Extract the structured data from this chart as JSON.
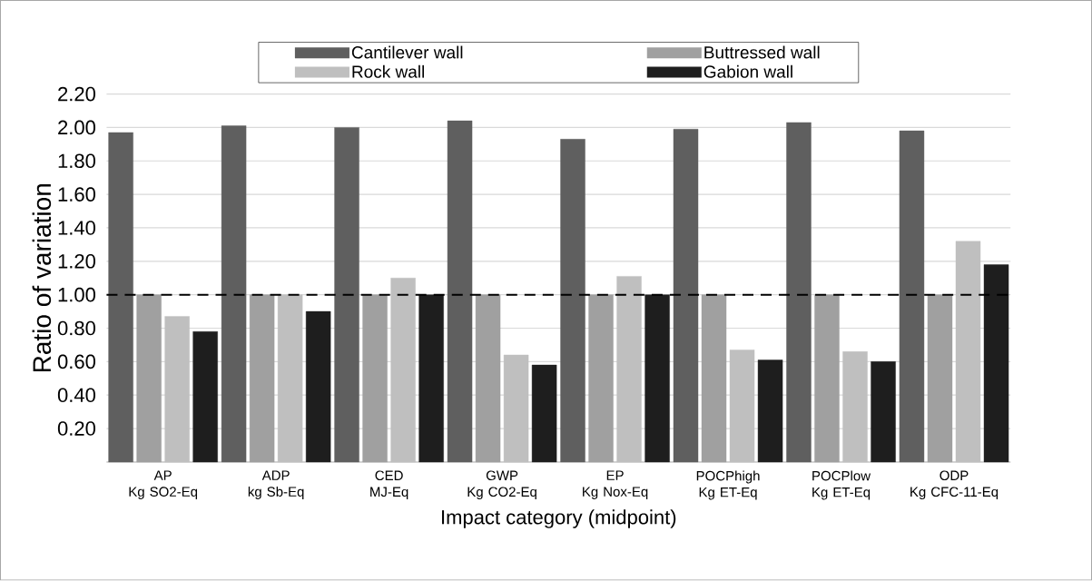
{
  "chart_data": {
    "type": "bar",
    "xlabel": "Impact category  (midpoint)",
    "ylabel": "Ratio of variation",
    "categories": [
      "AP\nKg SO2-Eq",
      "ADP\nkg Sb-Eq",
      "CED\nMJ-Eq",
      "GWP\nKg CO2-Eq",
      "EP\nKg Nox-Eq",
      "POCPhigh\nKg ET-Eq",
      "POCPlow\nKg ET-Eq",
      "ODP\nKg CFC-11-Eq"
    ],
    "series": [
      {
        "name": "Cantilever wall",
        "color": "#5f5f5f",
        "values": [
          1.97,
          2.01,
          2.0,
          2.04,
          1.93,
          1.99,
          2.03,
          1.98
        ]
      },
      {
        "name": "Buttressed wall",
        "color": "#a0a0a0",
        "values": [
          1.0,
          1.0,
          1.0,
          1.0,
          1.0,
          1.0,
          1.0,
          1.0
        ]
      },
      {
        "name": "Rock wall",
        "color": "#bfbfbf",
        "values": [
          0.87,
          1.0,
          1.1,
          0.64,
          1.11,
          0.67,
          0.66,
          1.32
        ]
      },
      {
        "name": "Gabion wall",
        "color": "#1e1e1e",
        "values": [
          0.78,
          0.9,
          1.0,
          0.58,
          1.0,
          0.61,
          0.6,
          1.18
        ]
      }
    ],
    "ylim": [
      0,
      2.2
    ],
    "yticks": [
      {
        "value": 0,
        "label": null
      },
      {
        "value": 0.2,
        "label": "0.20"
      },
      {
        "value": 0.4,
        "label": "0.40"
      },
      {
        "value": 0.6,
        "label": "0.60"
      },
      {
        "value": 0.8,
        "label": "0.80"
      },
      {
        "value": 1.0,
        "label": "1.00"
      },
      {
        "value": 1.2,
        "label": "1.20"
      },
      {
        "value": 1.4,
        "label": "1.40"
      },
      {
        "value": 1.6,
        "label": "1.60"
      },
      {
        "value": 1.8,
        "label": "1.80"
      },
      {
        "value": 2.0,
        "label": "2.00"
      },
      {
        "value": 2.2,
        "label": "2.20"
      }
    ],
    "ref_lines": [
      {
        "axis": "y",
        "value": 1.0,
        "color": "#000000",
        "line_style": "dashed"
      }
    ],
    "grid": "y",
    "legend": "top"
  }
}
